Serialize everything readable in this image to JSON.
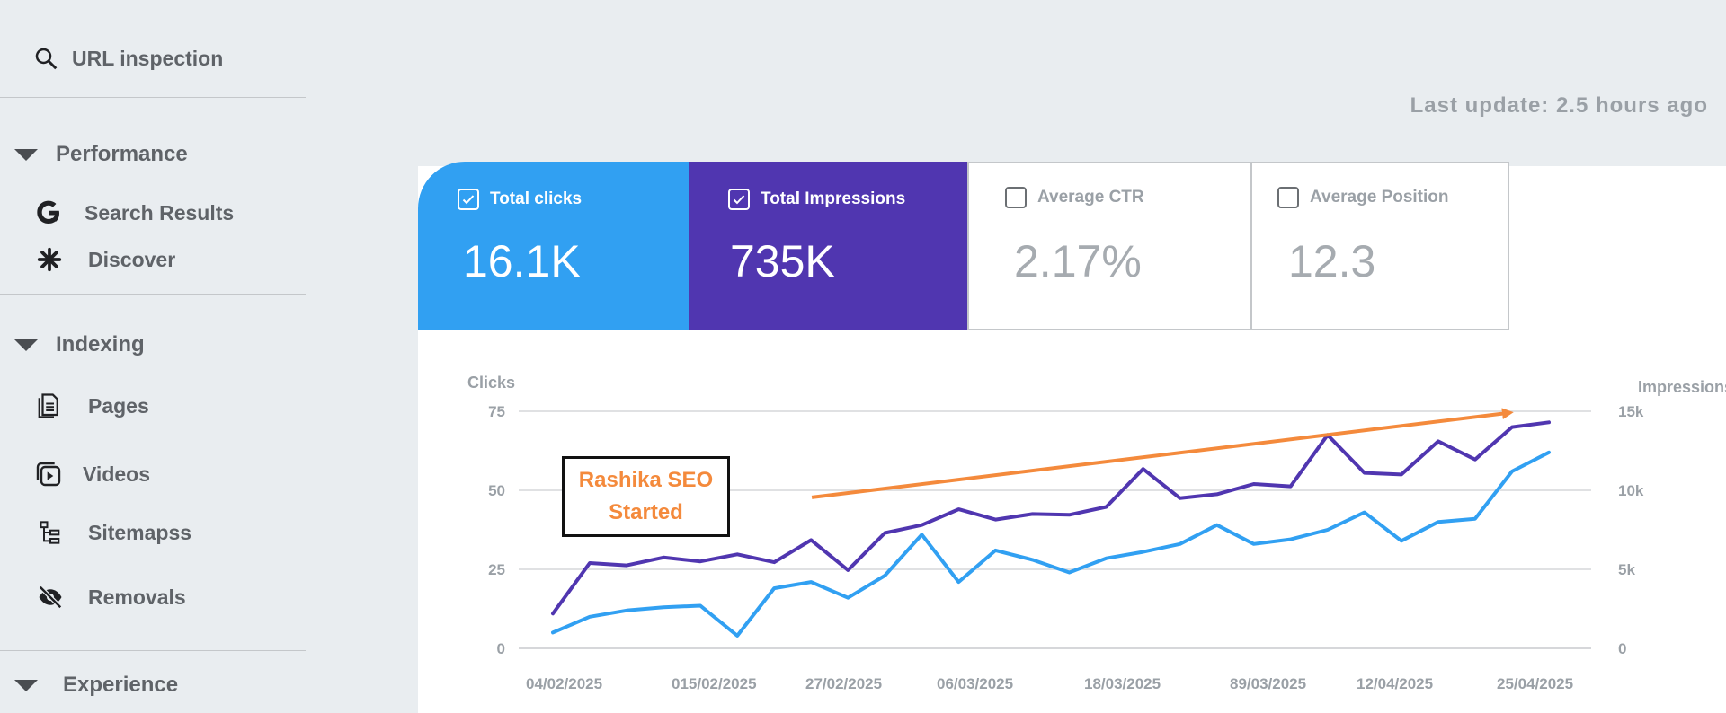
{
  "sidebar": {
    "url_inspection": "URL inspection",
    "sections": {
      "performance": "Performance",
      "indexing": "Indexing",
      "experience": "Experience"
    },
    "items": {
      "search_results": "Search Results",
      "discover": "Discover",
      "pages": "Pages",
      "videos": "Videos",
      "sitemaps": "Sitemapss",
      "removals": "Removals"
    }
  },
  "last_update": "Last update: 2.5 hours ago",
  "cards": {
    "clicks": {
      "label": "Total clicks",
      "value": "16.1K",
      "checked": true
    },
    "impressions": {
      "label": "Total Impressions",
      "value": "735K",
      "checked": true
    },
    "ctr": {
      "label": "Average CTR",
      "value": "2.17%",
      "checked": false
    },
    "position": {
      "label": "Average Position",
      "value": "12.3",
      "checked": false
    }
  },
  "colors": {
    "clicks": "#31a0f2",
    "impressions": "#5036b0",
    "annotation": "#f48a3c"
  },
  "annotation": {
    "line1": "Rashika SEO",
    "line2": "Started"
  },
  "chart_data": {
    "type": "line",
    "ylabel": "Clicks",
    "y2label": "Impressions",
    "ylim": [
      0,
      75
    ],
    "y2lim": [
      0,
      15000
    ],
    "yticks": [
      "0",
      "25",
      "50",
      "75"
    ],
    "y2ticks": [
      "0",
      "5k",
      "10k",
      "15k"
    ],
    "xticks": [
      "04/02/2025",
      "015/02/2025",
      "27/02/2025",
      "06/03/2025",
      "18/03/2025",
      "89/03/2025",
      "12/04/2025",
      "25/04/2025"
    ],
    "grid": true,
    "series": [
      {
        "name": "Total clicks",
        "axis": "left",
        "values": [
          5,
          10,
          12,
          13,
          13.5,
          4,
          19,
          21,
          16,
          23,
          36,
          21,
          31,
          28,
          24,
          28.5,
          30.5,
          33,
          39,
          33,
          34.5,
          37.5,
          43,
          34,
          40,
          41,
          56,
          62
        ]
      },
      {
        "name": "Total Impressions",
        "axis": "right",
        "values": [
          2200,
          5400,
          5250,
          5750,
          5500,
          5950,
          5450,
          6850,
          4950,
          7300,
          7800,
          8800,
          8150,
          8500,
          8450,
          8950,
          11350,
          9500,
          9750,
          10400,
          10250,
          13500,
          11100,
          11000,
          13100,
          11950,
          14000,
          14300
        ]
      }
    ],
    "trend_arrow": {
      "from": [
        0.26,
        9550
      ],
      "to": [
        0.96,
        14900
      ]
    }
  }
}
